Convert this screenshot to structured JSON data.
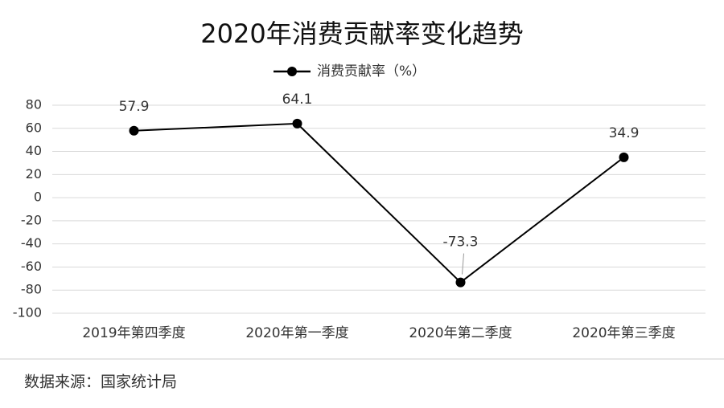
{
  "chart_data": {
    "type": "line",
    "title": "2020年消费贡献率变化趋势",
    "categories": [
      "2019年第四季度",
      "2020年第一季度",
      "2020年第二季度",
      "2020年第三季度"
    ],
    "series": [
      {
        "name": "消费贡献率（%）",
        "color": "#000000",
        "values": [
          57.9,
          64.1,
          -73.3,
          34.9
        ]
      }
    ],
    "ylim": [
      -100,
      80
    ],
    "yticks": [
      -100,
      -80,
      -60,
      -40,
      -20,
      0,
      20,
      40,
      60,
      80
    ],
    "grid": true,
    "legend": "top"
  },
  "footer": {
    "source": "数据来源：国家统计局"
  }
}
